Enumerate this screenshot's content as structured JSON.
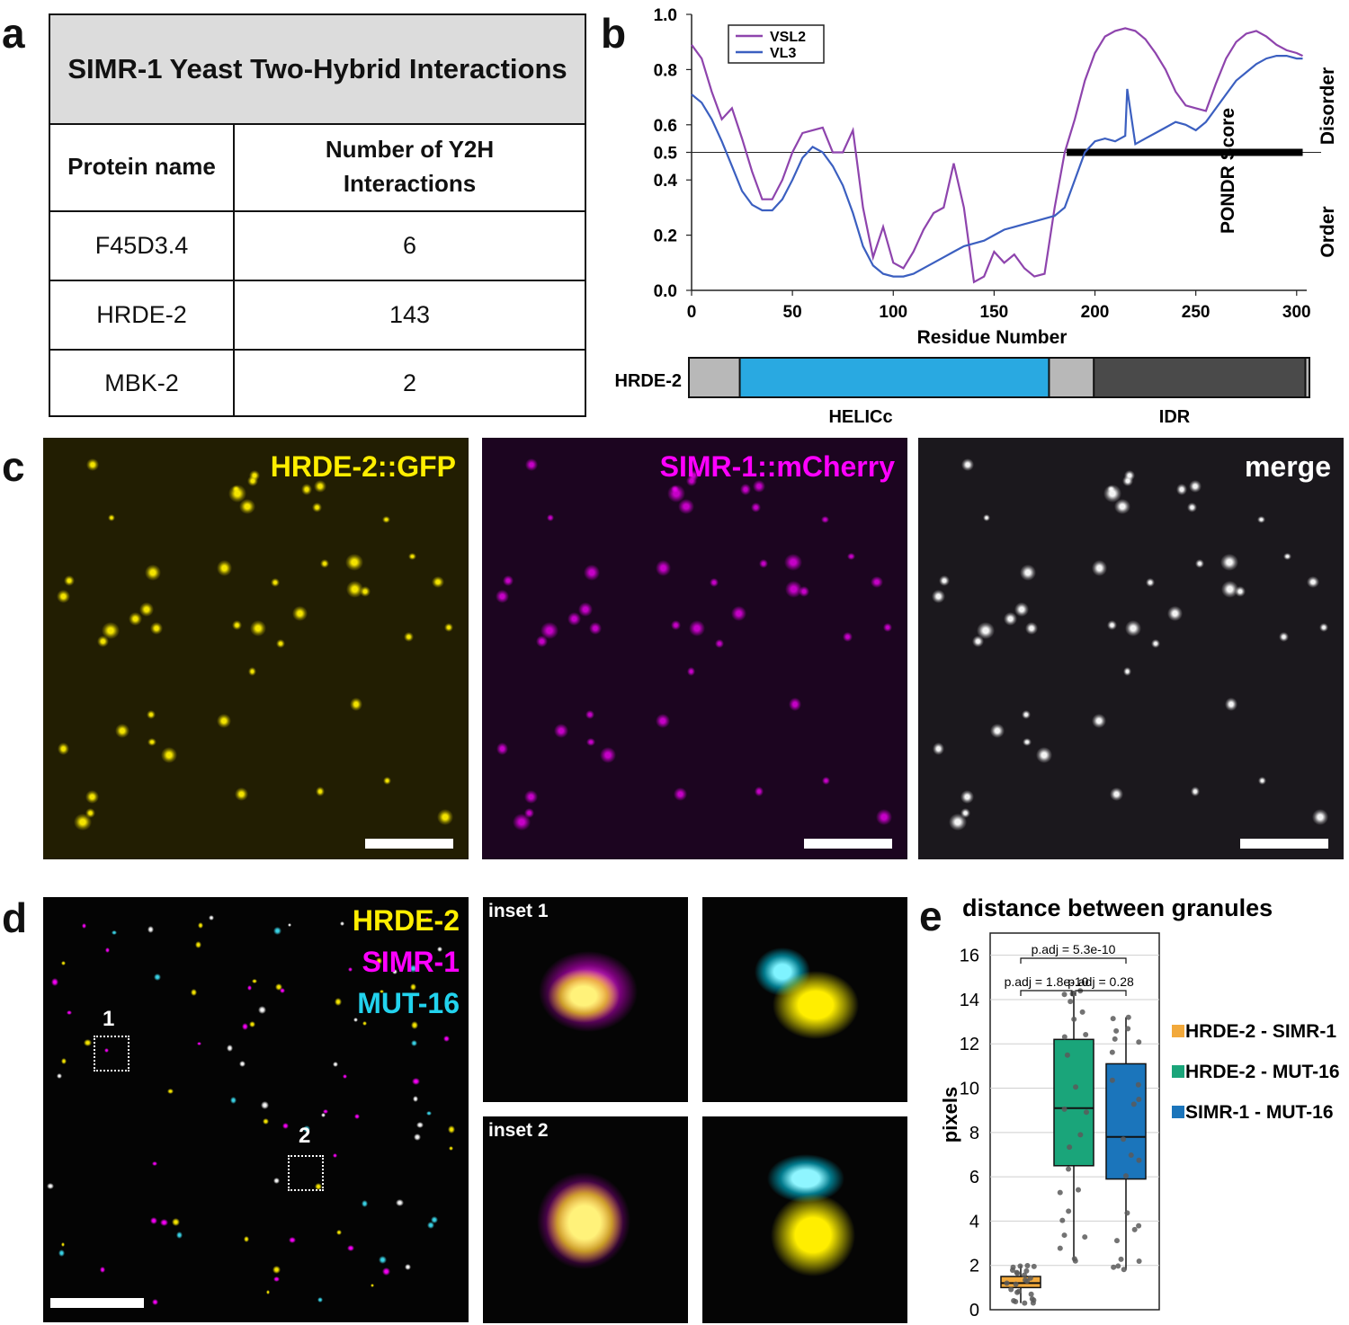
{
  "panels": {
    "a": "a",
    "b": "b",
    "c": "c",
    "d": "d",
    "e": "e"
  },
  "table": {
    "title": "SIMR-1 Yeast Two-Hybrid Interactions",
    "col1": "Protein name",
    "col2": "Number of Y2H\nInteractions",
    "rows": [
      {
        "protein": "F45D3.4",
        "count": "6"
      },
      {
        "protein": "HRDE-2",
        "count": "143"
      },
      {
        "protein": "MBK-2",
        "count": "2"
      }
    ]
  },
  "pondr": {
    "ylabel": "PONDR Score",
    "xlabel": "Residue Number",
    "legend": [
      "VSL2",
      "VL3"
    ],
    "right_top": "Disorder",
    "right_bottom": "Order",
    "yticks": [
      "0.0",
      "0.2",
      "0.4",
      "0.5",
      "0.6",
      "0.8",
      "1.0"
    ],
    "xticks": [
      "0",
      "50",
      "100",
      "150",
      "200",
      "250",
      "300"
    ],
    "domain_label": "HRDE-2",
    "domain_names": [
      "HELICc",
      "IDR"
    ],
    "colors": {
      "vsl2": "#8e44ad",
      "vl3": "#3b5fc0",
      "helicc": "#29a9e1",
      "idr": "#4a4a4a",
      "linker": "#b8b8b8"
    }
  },
  "chart_data": {
    "type": "line",
    "title": "",
    "xlabel": "Residue Number",
    "ylabel": "PONDR Score",
    "xlim": [
      0,
      305
    ],
    "ylim": [
      0,
      1.0
    ],
    "threshold": 0.5,
    "disordered_region": [
      186,
      303
    ],
    "domains": [
      {
        "name": "HELICc",
        "start": 25,
        "end": 177
      },
      {
        "name": "IDR",
        "start": 199,
        "end": 303
      }
    ],
    "series": [
      {
        "name": "VSL2",
        "x": [
          0,
          5,
          10,
          15,
          20,
          25,
          30,
          35,
          40,
          45,
          50,
          55,
          60,
          65,
          70,
          75,
          80,
          85,
          90,
          95,
          100,
          105,
          110,
          115,
          120,
          125,
          130,
          135,
          140,
          145,
          150,
          155,
          160,
          165,
          170,
          175,
          180,
          185,
          190,
          195,
          200,
          205,
          210,
          215,
          220,
          225,
          230,
          235,
          240,
          245,
          250,
          255,
          260,
          265,
          270,
          275,
          280,
          285,
          290,
          295,
          300,
          303
        ],
        "y": [
          0.89,
          0.84,
          0.72,
          0.62,
          0.66,
          0.55,
          0.43,
          0.33,
          0.33,
          0.4,
          0.5,
          0.57,
          0.58,
          0.59,
          0.5,
          0.5,
          0.58,
          0.3,
          0.12,
          0.23,
          0.1,
          0.08,
          0.14,
          0.22,
          0.28,
          0.3,
          0.46,
          0.3,
          0.03,
          0.05,
          0.14,
          0.1,
          0.13,
          0.08,
          0.05,
          0.06,
          0.3,
          0.5,
          0.62,
          0.76,
          0.86,
          0.92,
          0.94,
          0.95,
          0.94,
          0.91,
          0.86,
          0.8,
          0.72,
          0.67,
          0.66,
          0.65,
          0.75,
          0.84,
          0.9,
          0.93,
          0.94,
          0.92,
          0.89,
          0.87,
          0.86,
          0.85
        ]
      },
      {
        "name": "VL3",
        "x": [
          0,
          5,
          10,
          15,
          20,
          25,
          30,
          35,
          40,
          45,
          50,
          55,
          60,
          65,
          70,
          75,
          80,
          85,
          90,
          95,
          100,
          105,
          110,
          115,
          120,
          125,
          130,
          135,
          140,
          145,
          150,
          155,
          160,
          165,
          170,
          175,
          180,
          185,
          190,
          195,
          200,
          205,
          210,
          215,
          216,
          220,
          225,
          230,
          235,
          240,
          245,
          250,
          255,
          260,
          265,
          270,
          275,
          280,
          285,
          290,
          295,
          300,
          303
        ],
        "y": [
          0.71,
          0.68,
          0.62,
          0.54,
          0.45,
          0.36,
          0.31,
          0.29,
          0.29,
          0.33,
          0.4,
          0.48,
          0.52,
          0.5,
          0.45,
          0.38,
          0.28,
          0.16,
          0.09,
          0.06,
          0.05,
          0.05,
          0.06,
          0.08,
          0.1,
          0.12,
          0.14,
          0.16,
          0.17,
          0.18,
          0.2,
          0.22,
          0.23,
          0.24,
          0.25,
          0.26,
          0.27,
          0.3,
          0.4,
          0.5,
          0.54,
          0.55,
          0.54,
          0.56,
          0.73,
          0.53,
          0.55,
          0.57,
          0.59,
          0.61,
          0.6,
          0.58,
          0.61,
          0.66,
          0.71,
          0.76,
          0.79,
          0.82,
          0.84,
          0.85,
          0.85,
          0.84,
          0.84
        ]
      }
    ]
  },
  "panel_c": {
    "ch1": "HRDE-2::GFP",
    "ch2": "SIMR-1::mCherry",
    "ch3": "merge",
    "colors": {
      "ch1": "#ffee00",
      "ch2": "#ff00ff",
      "ch3": "#ffffff"
    }
  },
  "panel_d": {
    "ch1": "HRDE-2",
    "ch2": "SIMR-1",
    "ch3": "MUT-16",
    "box1": "1",
    "box2": "2",
    "inset1": "inset 1",
    "inset2": "inset 2",
    "colors": {
      "ch1": "#ffee00",
      "ch2": "#ff00ff",
      "ch3": "#22d3ee"
    }
  },
  "panel_e": {
    "title": "distance between granules",
    "ylabel": "pixels",
    "yticks": [
      "0",
      "2",
      "4",
      "6",
      "8",
      "10",
      "12",
      "14",
      "16"
    ],
    "pvals": [
      "p.adj = 5.3e-10",
      "p.adj = 1.8e-10",
      "p.adj = 0.28"
    ],
    "legend": [
      "HRDE-2 - SIMR-1",
      "HRDE-2 - MUT-16",
      "SIMR-1 - MUT-16"
    ],
    "colors": [
      "#f2a93b",
      "#1aa57a",
      "#1b75bb"
    ]
  },
  "box_data": {
    "type": "box",
    "ylim": [
      0,
      17
    ],
    "groups": [
      {
        "name": "HRDE-2 - SIMR-1",
        "min": 0.3,
        "q1": 1.0,
        "median": 1.2,
        "q3": 1.5,
        "max": 2.0
      },
      {
        "name": "HRDE-2 - MUT-16",
        "min": 2.2,
        "q1": 6.5,
        "median": 9.1,
        "q3": 12.2,
        "max": 14.4
      },
      {
        "name": "SIMR-1 - MUT-16",
        "min": 1.8,
        "q1": 5.9,
        "median": 7.8,
        "q3": 11.1,
        "max": 13.2
      }
    ]
  }
}
